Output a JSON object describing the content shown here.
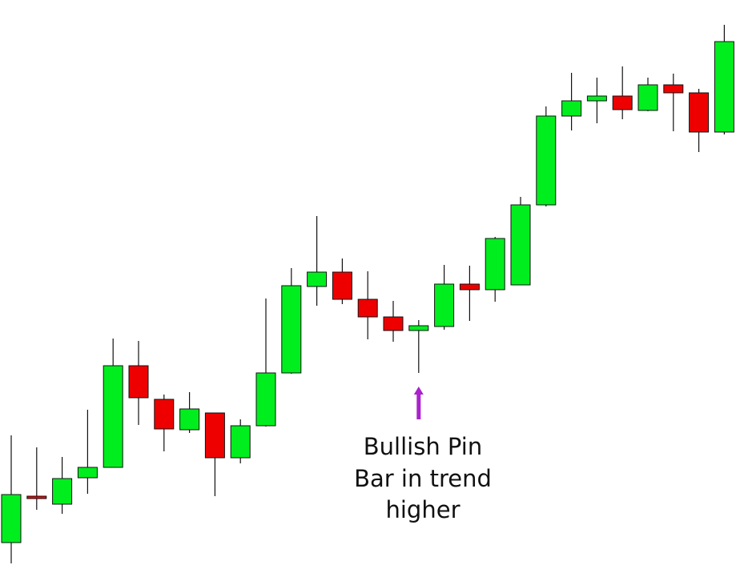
{
  "chart_data": {
    "type": "candlestick",
    "title": "",
    "xlabel": "",
    "ylabel": "",
    "axes_visible": false,
    "grid": false,
    "ylim": [
      0,
      711
    ],
    "colors": {
      "bullish": "#00ee1e",
      "bearish": "#ee0000",
      "outline": "#111111",
      "annotation_arrow": "#aa22cc",
      "background": "#ffffff"
    },
    "candles": [
      {
        "open": 33,
        "high": 167,
        "low": 7,
        "close": 93
      },
      {
        "open": 91,
        "high": 152,
        "low": 74,
        "close": 88
      },
      {
        "open": 81,
        "high": 140,
        "low": 69,
        "close": 113
      },
      {
        "open": 114,
        "high": 199,
        "low": 94,
        "close": 127
      },
      {
        "open": 127,
        "high": 288,
        "low": 127,
        "close": 254
      },
      {
        "open": 254,
        "high": 285,
        "low": 180,
        "close": 214
      },
      {
        "open": 212,
        "high": 218,
        "low": 147,
        "close": 175
      },
      {
        "open": 174,
        "high": 221,
        "low": 170,
        "close": 200
      },
      {
        "open": 195,
        "high": 195,
        "low": 91,
        "close": 139
      },
      {
        "open": 139,
        "high": 187,
        "low": 132,
        "close": 179
      },
      {
        "open": 179,
        "high": 338,
        "low": 178,
        "close": 245
      },
      {
        "open": 245,
        "high": 376,
        "low": 244,
        "close": 354
      },
      {
        "open": 353,
        "high": 441,
        "low": 329,
        "close": 371
      },
      {
        "open": 371,
        "high": 388,
        "low": 331,
        "close": 337
      },
      {
        "open": 337,
        "high": 372,
        "low": 287,
        "close": 315
      },
      {
        "open": 315,
        "high": 335,
        "low": 284,
        "close": 298
      },
      {
        "open": 298,
        "high": 311,
        "low": 245,
        "close": 304
      },
      {
        "open": 303,
        "high": 380,
        "low": 299,
        "close": 356
      },
      {
        "open": 356,
        "high": 379,
        "low": 310,
        "close": 349
      },
      {
        "open": 349,
        "high": 415,
        "low": 334,
        "close": 413
      },
      {
        "open": 355,
        "high": 465,
        "low": 355,
        "close": 455
      },
      {
        "open": 455,
        "high": 578,
        "low": 453,
        "close": 566
      },
      {
        "open": 566,
        "high": 620,
        "low": 548,
        "close": 585
      },
      {
        "open": 585,
        "high": 614,
        "low": 557,
        "close": 591
      },
      {
        "open": 591,
        "high": 628,
        "low": 562,
        "close": 574
      },
      {
        "open": 573,
        "high": 614,
        "low": 572,
        "close": 605
      },
      {
        "open": 605,
        "high": 619,
        "low": 547,
        "close": 595
      },
      {
        "open": 595,
        "high": 600,
        "low": 521,
        "close": 546
      },
      {
        "open": 546,
        "high": 680,
        "low": 543,
        "close": 659
      }
    ],
    "annotation": {
      "target_candle_index": 16,
      "lines": [
        "Bullish Pin",
        "Bar in trend",
        "higher"
      ]
    }
  }
}
